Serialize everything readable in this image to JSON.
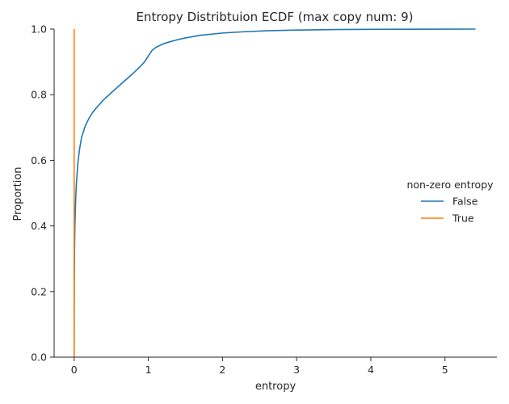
{
  "chart_data": {
    "type": "line",
    "title": "Entropy Distribtuion ECDF (max copy num: 9)",
    "xlabel": "entropy",
    "ylabel": "Proportion",
    "xlim": [
      -0.27,
      5.7
    ],
    "ylim": [
      0,
      1.0
    ],
    "xticks": [
      0,
      1,
      2,
      3,
      4,
      5
    ],
    "yticks": [
      0.0,
      0.2,
      0.4,
      0.6,
      0.8,
      1.0
    ],
    "xtick_labels": [
      "0",
      "1",
      "2",
      "3",
      "4",
      "5"
    ],
    "ytick_labels": [
      "0.0",
      "0.2",
      "0.4",
      "0.6",
      "0.8",
      "1.0"
    ],
    "grid": false,
    "legend": {
      "title": "non-zero entropy",
      "placement": "right"
    },
    "series": [
      {
        "name": "False",
        "color": "#1f77b4",
        "x": [
          0,
          0.002,
          0.005,
          0.01,
          0.02,
          0.03,
          0.05,
          0.07,
          0.1,
          0.15,
          0.2,
          0.25,
          0.3,
          0.4,
          0.5,
          0.6,
          0.7,
          0.8,
          0.9,
          0.95,
          1.0,
          1.05,
          1.1,
          1.2,
          1.3,
          1.4,
          1.5,
          1.7,
          2.0,
          2.3,
          2.6,
          3.0,
          3.5,
          4.0,
          4.5,
          5.0,
          5.41
        ],
        "y": [
          0.0,
          0.23,
          0.32,
          0.4,
          0.48,
          0.53,
          0.59,
          0.63,
          0.67,
          0.705,
          0.728,
          0.746,
          0.76,
          0.785,
          0.806,
          0.826,
          0.846,
          0.866,
          0.888,
          0.9,
          0.918,
          0.935,
          0.944,
          0.955,
          0.962,
          0.968,
          0.973,
          0.981,
          0.988,
          0.992,
          0.995,
          0.997,
          0.9985,
          0.9992,
          0.9996,
          0.9998,
          1.0
        ]
      },
      {
        "name": "True",
        "color": "#ff7f0e",
        "x": [
          0,
          0
        ],
        "y": [
          0.0,
          1.0
        ]
      }
    ]
  }
}
